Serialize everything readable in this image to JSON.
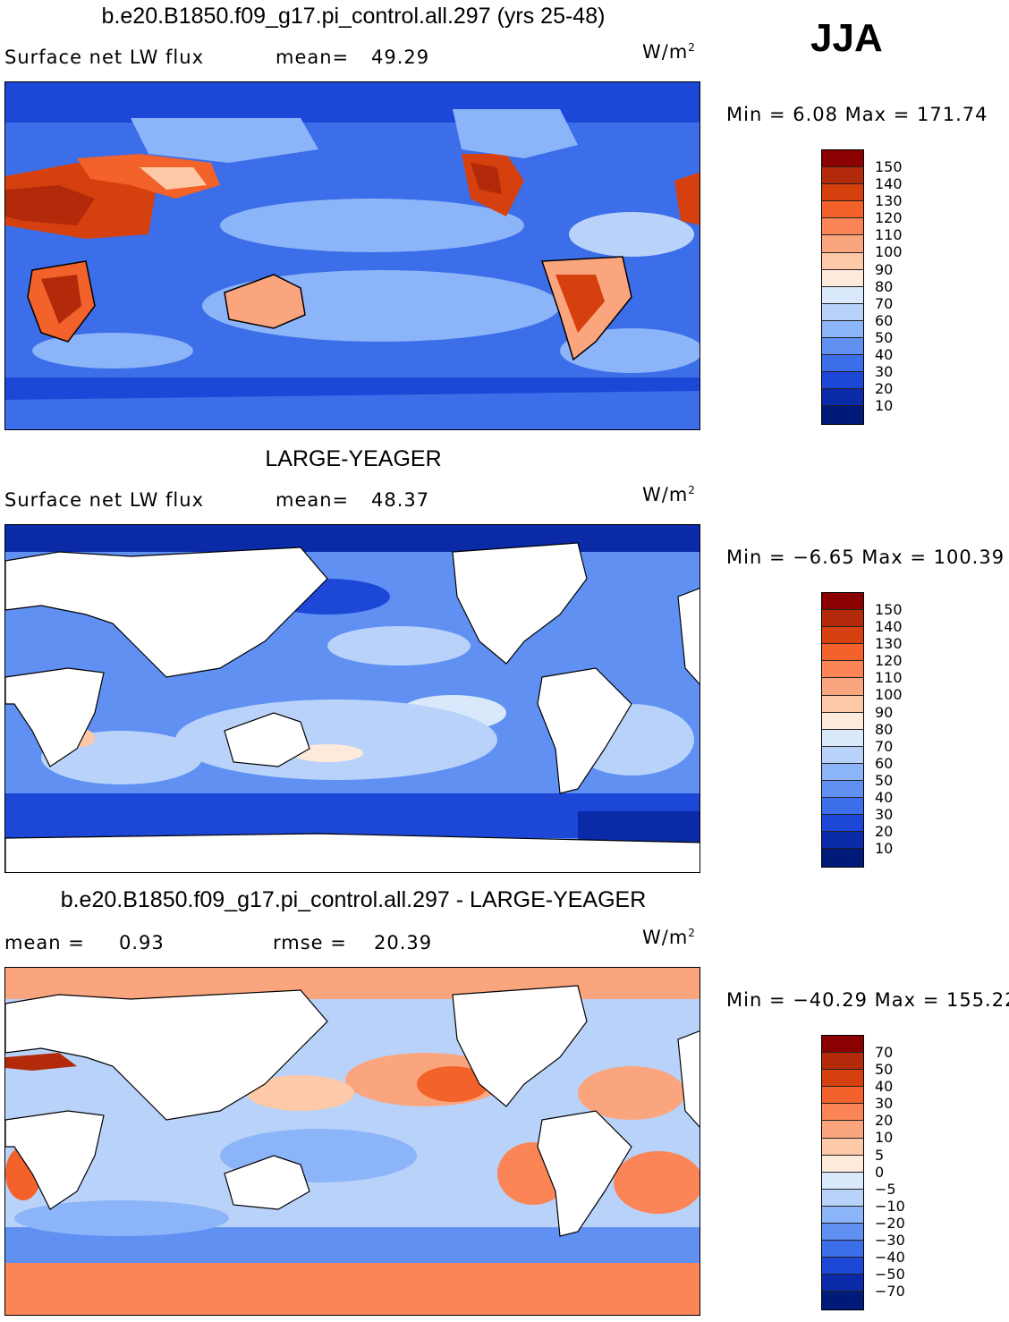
{
  "season": "JJA",
  "panels": [
    {
      "title": "b.e20.B1850.f09_g17.pi_control.all.297 (yrs 25-48)",
      "left_label": "Surface net LW flux",
      "stat_label": "mean=",
      "stat_value": "49.29",
      "stat2_label": "",
      "stat2_value": "",
      "units": "W/m",
      "units_sup": "2",
      "minmax": "Min =    6.08 Max = 171.74",
      "ocean_base": "#3d6fe6",
      "colorbar": {
        "labels": [
          "150",
          "140",
          "130",
          "120",
          "110",
          "100",
          "90",
          "80",
          "70",
          "60",
          "50",
          "40",
          "30",
          "20",
          "10"
        ],
        "colors": [
          "#8b0000",
          "#b22a0a",
          "#d6400f",
          "#f2622a",
          "#fb8557",
          "#fba57f",
          "#fdc9a8",
          "#feeada",
          "#d9e8fb",
          "#b8d2fa",
          "#8cb4f8",
          "#5f90f2",
          "#3b6ee8",
          "#1d47d6",
          "#0a2aa8",
          "#001a7a"
        ]
      },
      "lands_white": false
    },
    {
      "title": "LARGE-YEAGER",
      "left_label": "Surface net LW flux",
      "stat_label": "mean=",
      "stat_value": "48.37",
      "stat2_label": "",
      "stat2_value": "",
      "units": "W/m",
      "units_sup": "2",
      "minmax": "Min =   −6.65 Max = 100.39",
      "ocean_base": "#5f90f2",
      "colorbar": {
        "labels": [
          "150",
          "140",
          "130",
          "120",
          "110",
          "100",
          "90",
          "80",
          "70",
          "60",
          "50",
          "40",
          "30",
          "20",
          "10"
        ],
        "colors": [
          "#8b0000",
          "#b22a0a",
          "#d6400f",
          "#f2622a",
          "#fb8557",
          "#fba57f",
          "#fdc9a8",
          "#feeada",
          "#d9e8fb",
          "#b8d2fa",
          "#8cb4f8",
          "#5f90f2",
          "#3b6ee8",
          "#1d47d6",
          "#0a2aa8",
          "#001a7a"
        ]
      },
      "lands_white": true
    },
    {
      "title": "b.e20.B1850.f09_g17.pi_control.all.297 - LARGE-YEAGER",
      "left_label": "mean =",
      "stat_label": "",
      "stat_value": "0.93",
      "stat2_label": "rmse =",
      "stat2_value": "20.39",
      "units": "W/m",
      "units_sup": "2",
      "minmax": "Min = −40.29 Max = 155.22",
      "ocean_base": "#b8d2fa",
      "colorbar": {
        "labels": [
          "70",
          "50",
          "40",
          "30",
          "20",
          "10",
          "5",
          "0",
          "−5",
          "−10",
          "−20",
          "−30",
          "−40",
          "−50",
          "−70"
        ],
        "colors": [
          "#8b0000",
          "#b22a0a",
          "#d6400f",
          "#f2622a",
          "#fb8557",
          "#fba57f",
          "#fdc9a8",
          "#feeada",
          "#d9e8fb",
          "#b8d2fa",
          "#8cb4f8",
          "#5f90f2",
          "#3b6ee8",
          "#1d47d6",
          "#0a2aa8",
          "#001a7a"
        ]
      },
      "lands_white": true
    }
  ]
}
